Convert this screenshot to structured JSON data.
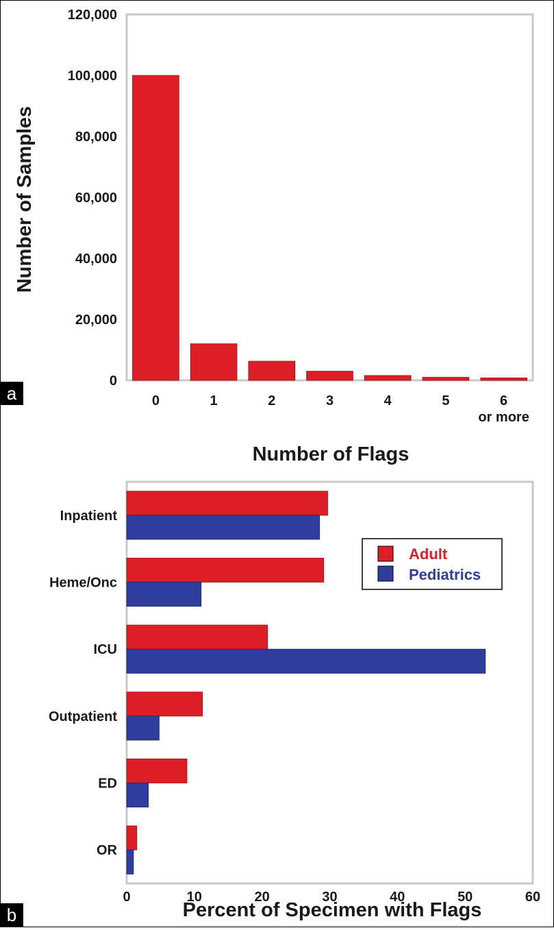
{
  "colors": {
    "adult": "#dc1f27",
    "pediatrics": "#2f3e9e",
    "frame": "#c8c8c8",
    "text": "#1a1a1a"
  },
  "chart_data": [
    {
      "panel": "a",
      "type": "bar",
      "orientation": "vertical",
      "categories": [
        "0",
        "1",
        "2",
        "3",
        "4",
        "5",
        "6"
      ],
      "category_sublabels": [
        "",
        "",
        "",
        "",
        "",
        "",
        "or more"
      ],
      "values": [
        100000,
        12000,
        6300,
        3000,
        1600,
        1000,
        800
      ],
      "xlabel": "Number of Flags",
      "ylabel": "Number of Samples",
      "ylim": [
        0,
        120000
      ],
      "yticks": [
        0,
        20000,
        40000,
        60000,
        80000,
        100000,
        120000
      ],
      "ytick_labels": [
        "0",
        "20,000",
        "40,000",
        "60,000",
        "80,000",
        "100,000",
        "120,000"
      ],
      "grid": false,
      "legend": "none"
    },
    {
      "panel": "b",
      "type": "bar",
      "orientation": "horizontal",
      "categories": [
        "Inpatient",
        "Heme/Onc",
        "ICU",
        "Outpatient",
        "ED",
        "OR"
      ],
      "series": [
        {
          "name": "Adult",
          "values": [
            29.7,
            29.1,
            20.8,
            11.2,
            8.9,
            1.5
          ]
        },
        {
          "name": "Pediatrics",
          "values": [
            28.5,
            11.0,
            53.0,
            4.8,
            3.2,
            1.0
          ]
        }
      ],
      "xlabel": "Percent of Specimen with Flags",
      "ylabel": "",
      "xlim": [
        0,
        60
      ],
      "xticks": [
        0,
        10,
        20,
        30,
        40,
        50,
        60
      ],
      "xtick_labels": [
        "0",
        "10",
        "20",
        "30",
        "40",
        "50",
        "60"
      ],
      "grid": false,
      "legend": "right"
    }
  ]
}
